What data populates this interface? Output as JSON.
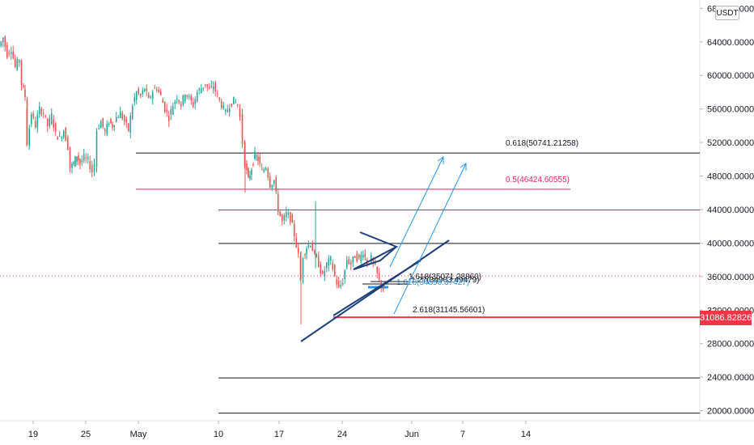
{
  "chart_data": {
    "type": "candlestick",
    "currency": "USDT",
    "last_price": "31086.82826",
    "y_axis_ticks": [
      "68000.00000",
      "64000.00000",
      "60000.00000",
      "56000.00000",
      "52000.00000",
      "48000.00000",
      "44000.00000",
      "40000.00000",
      "36000.00000",
      "32000.00000",
      "28000.00000",
      "24000.00000",
      "20000.00000"
    ],
    "y_tick_values": [
      68000,
      64000,
      60000,
      56000,
      52000,
      48000,
      44000,
      40000,
      36000,
      32000,
      28000,
      24000,
      20000
    ],
    "x_axis_ticks": [
      "19",
      "25",
      "May",
      "10",
      "17",
      "24",
      "Jun",
      "7",
      "14"
    ],
    "ylim": [
      18800,
      69000
    ],
    "price_path": [
      [
        0,
        63500
      ],
      [
        5,
        64500
      ],
      [
        10,
        62500
      ],
      [
        15,
        63200
      ],
      [
        20,
        61000
      ],
      [
        25,
        62000
      ],
      [
        28,
        59000
      ],
      [
        32,
        57500
      ],
      [
        35,
        52000
      ],
      [
        40,
        55500
      ],
      [
        45,
        54000
      ],
      [
        50,
        56000
      ],
      [
        55,
        55500
      ],
      [
        60,
        54000
      ],
      [
        65,
        55200
      ],
      [
        70,
        53000
      ],
      [
        75,
        52500
      ],
      [
        80,
        53500
      ],
      [
        85,
        51500
      ],
      [
        88,
        49000
      ],
      [
        92,
        49500
      ],
      [
        96,
        50500
      ],
      [
        100,
        49500
      ],
      [
        105,
        50200
      ],
      [
        110,
        49800
      ],
      [
        115,
        48500
      ],
      [
        118,
        49500
      ],
      [
        121,
        53500
      ],
      [
        126,
        54500
      ],
      [
        131,
        53200
      ],
      [
        136,
        54500
      ],
      [
        140,
        54000
      ],
      [
        145,
        55000
      ],
      [
        150,
        55500
      ],
      [
        155,
        54500
      ],
      [
        160,
        53500
      ],
      [
        165,
        56500
      ],
      [
        170,
        58000
      ],
      [
        175,
        57500
      ],
      [
        180,
        58500
      ],
      [
        185,
        57000
      ],
      [
        190,
        58200
      ],
      [
        195,
        58500
      ],
      [
        200,
        57500
      ],
      [
        205,
        56000
      ],
      [
        210,
        55000
      ],
      [
        215,
        56500
      ],
      [
        220,
        57500
      ],
      [
        225,
        56500
      ],
      [
        230,
        58000
      ],
      [
        235,
        57200
      ],
      [
        240,
        56500
      ],
      [
        245,
        58000
      ],
      [
        250,
        58500
      ],
      [
        255,
        59000
      ],
      [
        260,
        58200
      ],
      [
        265,
        58800
      ],
      [
        270,
        57500
      ],
      [
        275,
        56500
      ],
      [
        280,
        55500
      ],
      [
        285,
        56500
      ],
      [
        290,
        57000
      ],
      [
        295,
        56500
      ],
      [
        298,
        55000
      ],
      [
        301,
        52000
      ],
      [
        304,
        49500
      ],
      [
        308,
        47500
      ],
      [
        312,
        49000
      ],
      [
        316,
        50500
      ],
      [
        320,
        50000
      ],
      [
        325,
        48500
      ],
      [
        330,
        49200
      ],
      [
        335,
        47000
      ],
      [
        340,
        47500
      ],
      [
        345,
        44000
      ],
      [
        350,
        42500
      ],
      [
        355,
        43500
      ],
      [
        360,
        43000
      ],
      [
        365,
        41000
      ],
      [
        370,
        38500
      ],
      [
        373,
        35500
      ],
      [
        376,
        38500
      ],
      [
        380,
        39500
      ],
      [
        385,
        40000
      ],
      [
        390,
        38500
      ],
      [
        395,
        37500
      ],
      [
        400,
        36000
      ],
      [
        405,
        37500
      ],
      [
        410,
        38000
      ],
      [
        415,
        36000
      ],
      [
        420,
        34500
      ],
      [
        425,
        35500
      ],
      [
        430,
        38000
      ],
      [
        435,
        37500
      ],
      [
        440,
        38500
      ],
      [
        445,
        38000
      ],
      [
        450,
        39000
      ],
      [
        455,
        37500
      ],
      [
        460,
        38200
      ],
      [
        465,
        37000
      ],
      [
        470,
        35500
      ],
      [
        475,
        34500
      ]
    ],
    "levels": [
      {
        "price": 50741.21,
        "color": "#131722",
        "label": "0.618(50741.21258)",
        "label_color": "#131722",
        "width": 1
      },
      {
        "price": 46424.61,
        "color": "#e91e63",
        "label": "0.5(46424.60555)",
        "label_color": "#e91e63",
        "width": 1
      },
      {
        "price": 43950,
        "color": "#e91e63",
        "label": "",
        "label_color": "#e91e63",
        "width": 1
      },
      {
        "price": 39950,
        "color": "#131722",
        "label": "",
        "label_color": "#131722",
        "width": 1
      },
      {
        "price": 31145.57,
        "color": "#f23645",
        "label": "2.618(31145.56601)",
        "label_color": "#131722",
        "width": 2
      },
      {
        "price": 23900,
        "color": "#131722",
        "label": "",
        "label_color": "#131722",
        "width": 1
      },
      {
        "price": 19700,
        "color": "#131722",
        "label": "",
        "label_color": "#131722",
        "width": 1
      }
    ],
    "overlap_labels": [
      {
        "text": "1.618(35071.28860)",
        "color": "#131722"
      },
      {
        "text": "1.27(34963.49479)",
        "color": "#131722"
      },
      {
        "text": "1.618(34598.37427)",
        "color": "#2196f3"
      }
    ],
    "colors": {
      "up": "#26a69a",
      "down": "#ef5350",
      "trendline": "#1c3f7a",
      "projection": "#2196f3",
      "current_price_line": "#f23645"
    }
  }
}
